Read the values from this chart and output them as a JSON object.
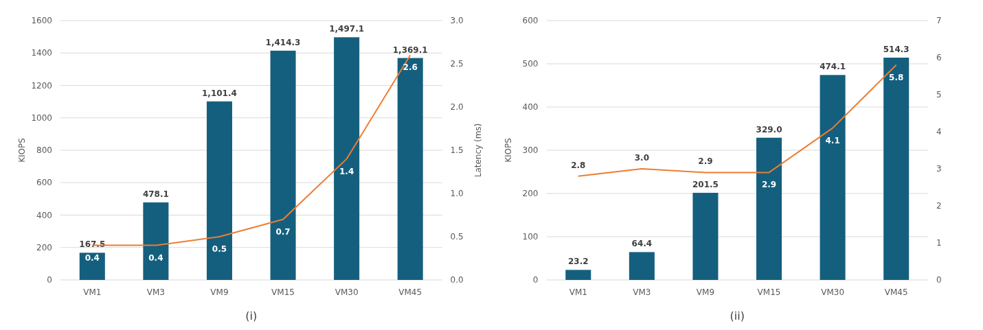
{
  "chart_data": [
    {
      "type": "bar",
      "categories": [
        "VM1",
        "VM3",
        "VM9",
        "VM15",
        "VM30",
        "VM45"
      ],
      "ylabel": "KIOPS",
      "y2label": "Latency (ms)",
      "ylim": [
        0,
        1600
      ],
      "yticks": [
        0,
        200,
        400,
        600,
        800,
        1000,
        1200,
        1400,
        1600
      ],
      "y2lim": [
        0,
        3
      ],
      "y2ticks": [
        {
          "value": 0,
          "label": "0.0"
        },
        {
          "value": 0.5,
          "label": "0.5"
        },
        {
          "value": 1,
          "label": "1.0"
        },
        {
          "value": 1.5,
          "label": "1.5"
        },
        {
          "value": 2,
          "label": "2.0"
        },
        {
          "value": 2.5,
          "label": "2.5"
        },
        {
          "value": 3,
          "label": "3.0"
        }
      ],
      "grid": "y",
      "annotations": [
        "(i)"
      ],
      "series": [
        {
          "color": "#155f7e",
          "values": [
            167.5,
            478.1,
            1101.4,
            1414.3,
            1497.1,
            1369.1
          ],
          "value_labels": [
            "167.5",
            "478.1",
            "1,101.4",
            "1,414.3",
            "1,497.1",
            "1,369.1"
          ]
        },
        {
          "type": "line",
          "axis": "y2",
          "color": "#ed7d31",
          "values": [
            0.4,
            0.4,
            0.5,
            0.7,
            1.4,
            2.6
          ],
          "value_labels": [
            "0.4",
            "0.4",
            "0.5",
            "0.7",
            "1.4",
            "2.6"
          ]
        }
      ]
    },
    {
      "type": "bar",
      "categories": [
        "VM1",
        "VM3",
        "VM9",
        "VM15",
        "VM30",
        "VM45"
      ],
      "ylabel": "KIOPS",
      "ylim": [
        0,
        600
      ],
      "yticks": [
        0,
        100,
        200,
        300,
        400,
        500,
        600
      ],
      "y2lim": [
        0,
        7
      ],
      "y2ticks": [
        0,
        1,
        2,
        3,
        4,
        5,
        6,
        7
      ],
      "grid": "y",
      "annotations": [
        "(ii)"
      ],
      "series": [
        {
          "color": "#155f7e",
          "values": [
            23.2,
            64.4,
            201.5,
            329.0,
            474.1,
            514.3
          ],
          "value_labels": [
            "23.2",
            "64.4",
            "201.5",
            "329.0",
            "474.1",
            "514.3"
          ]
        },
        {
          "type": "line",
          "axis": "y2",
          "color": "#ed7d31",
          "values": [
            2.8,
            3.0,
            2.9,
            2.9,
            4.1,
            5.8
          ],
          "value_labels": [
            "2.8",
            "3.0",
            "2.9",
            "2.9",
            "4.1",
            "5.8"
          ]
        }
      ]
    }
  ]
}
